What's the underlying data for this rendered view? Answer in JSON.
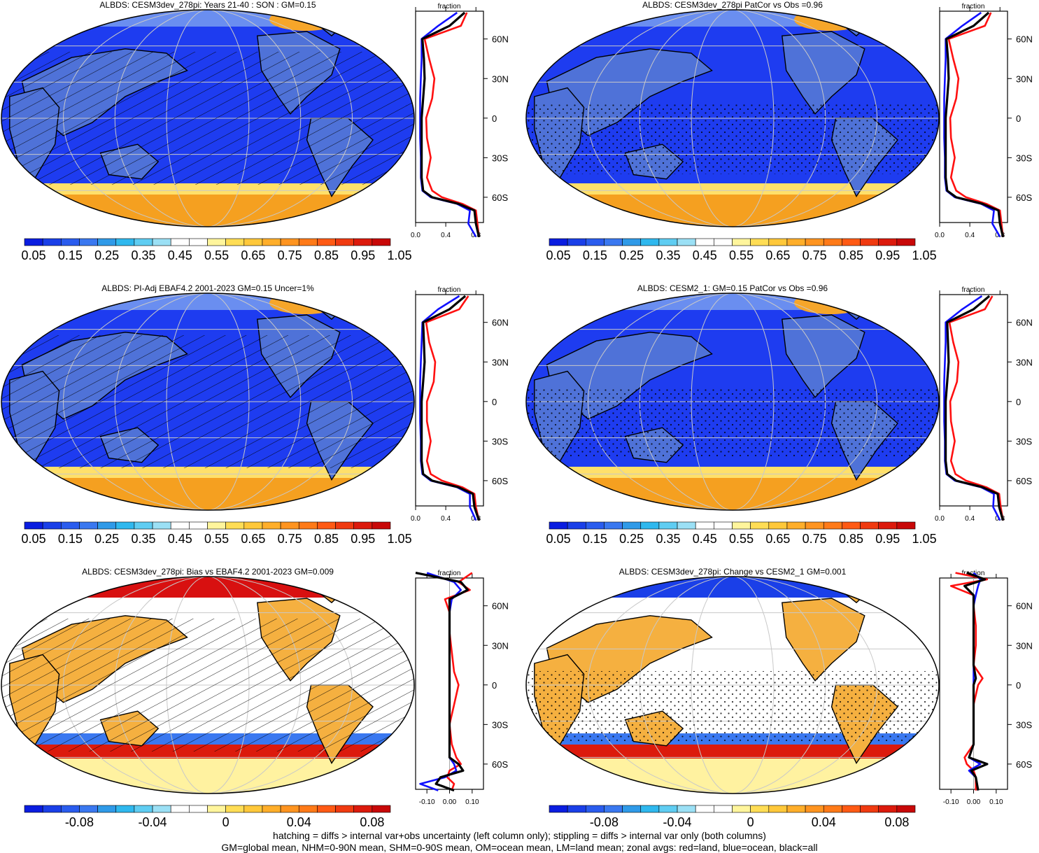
{
  "figure": {
    "panels": [
      {
        "title": "ALBDS: CESM3dev_278pi: Years 21-40 : SON : GM=0.15",
        "colorbar": "abs",
        "zonal_type": "abs",
        "overlay": "hatch",
        "field": "abs"
      },
      {
        "title": "ALBDS: CESM3dev_278pi PatCor vs Obs =0.96",
        "colorbar": "abs",
        "zonal_type": "abs",
        "overlay": "stipple",
        "field": "abs"
      },
      {
        "title": "ALBDS: PI-Adj EBAF4.2 2001-2023 GM=0.15 Uncer=1%",
        "colorbar": "abs",
        "zonal_type": "abs",
        "overlay": "hatch",
        "field": "abs"
      },
      {
        "title": "ALBDS: CESM2_1: GM=0.15 PatCor vs Obs =0.96",
        "colorbar": "abs",
        "zonal_type": "abs",
        "overlay": "stipple",
        "field": "abs"
      },
      {
        "title": "ALBDS: CESM3dev_278pi: Bias vs EBAF4.2 2001-2023  GM=0.009",
        "colorbar": "diff",
        "zonal_type": "diff",
        "overlay": "hatch",
        "field": "diff"
      },
      {
        "title": "ALBDS: CESM3dev_278pi: Change vs CESM2_1 GM=0.001",
        "colorbar": "diff",
        "zonal_type": "diff",
        "overlay": "stipple",
        "field": "diff"
      }
    ],
    "zonal_xlabel": "fraction",
    "lat_ticks": [
      "60N",
      "30N",
      "0",
      "30S",
      "60S"
    ],
    "abs_xticks": [
      "0.0",
      "0.4",
      "0.8"
    ],
    "diff_xticks": [
      "-0.10",
      "0.00",
      "0.10"
    ],
    "colorbar_abs_labels": [
      "0.05",
      "0.15",
      "0.25",
      "0.35",
      "0.45",
      "0.55",
      "0.65",
      "0.75",
      "0.85",
      "0.95",
      "1.05"
    ],
    "colorbar_diff_labels": [
      "-0.08",
      "-0.04",
      "0",
      "0.04",
      "0.08"
    ],
    "palette": [
      "#0a1de0",
      "#1a3fe8",
      "#2a5cee",
      "#3a78f0",
      "#2f9ae8",
      "#2fb8ee",
      "#5fcdf2",
      "#9be0f5",
      "#ffffff",
      "#ffffff",
      "#fff59c",
      "#ffdd55",
      "#ffc83a",
      "#ffae2a",
      "#ff9420",
      "#ff7a18",
      "#ff5a14",
      "#f03a10",
      "#dc1a0c",
      "#c80808"
    ],
    "ocean_color": "#1e3cf0",
    "land_color": "#4f72d8",
    "line_colors": {
      "land": "#ff1010",
      "ocean": "#1010ff",
      "all": "#000000"
    },
    "footer": [
      "hatching = diffs > internal var+obs uncertainty (left column only); stippling = diffs > internal var only (both columns)",
      "GM=global mean, NHM=0-90N mean, SHM=0-90S mean, OM=ocean mean, LM=land mean; zonal avgs: red=land, blue=ocean, black=all"
    ]
  },
  "chart_data": [
    {
      "type": "heatmap",
      "title": "ALBDS: CESM3dev_278pi: Years 21-40 : SON : GM=0.15",
      "colorbar_ticks": [
        0.05,
        0.15,
        0.25,
        0.35,
        0.45,
        0.55,
        0.65,
        0.75,
        0.85,
        0.95,
        1.05
      ],
      "zonal_mean": {
        "xlabel": "fraction",
        "xlim": [
          0,
          0.9
        ],
        "ylim": [
          -90,
          90
        ],
        "lat": [
          80,
          70,
          60,
          45,
          30,
          15,
          0,
          -15,
          -30,
          -45,
          -55,
          -60,
          -65,
          -70,
          -80,
          -90
        ],
        "series": [
          {
            "name": "land",
            "values": [
              0.68,
              0.6,
              0.12,
              0.18,
              0.25,
              0.22,
              0.14,
              0.15,
              0.2,
              0.15,
              0.22,
              0.35,
              0.62,
              0.8,
              0.82,
              0.84
            ]
          },
          {
            "name": "ocean",
            "values": [
              0.55,
              0.3,
              0.08,
              0.08,
              0.07,
              0.06,
              0.06,
              0.06,
              0.07,
              0.07,
              0.09,
              0.2,
              0.55,
              0.72,
              0.7,
              0.8
            ]
          },
          {
            "name": "all",
            "values": [
              0.65,
              0.45,
              0.09,
              0.11,
              0.12,
              0.1,
              0.08,
              0.08,
              0.08,
              0.08,
              0.1,
              0.22,
              0.57,
              0.78,
              0.8,
              0.84
            ]
          }
        ]
      }
    },
    {
      "type": "heatmap",
      "title": "ALBDS: CESM3dev_278pi PatCor vs Obs =0.96",
      "colorbar_ticks": [
        0.05,
        0.15,
        0.25,
        0.35,
        0.45,
        0.55,
        0.65,
        0.75,
        0.85,
        0.95,
        1.05
      ],
      "zonal_mean": {
        "xlabel": "fraction",
        "xlim": [
          0,
          0.9
        ],
        "ylim": [
          -90,
          90
        ],
        "lat": [
          80,
          70,
          60,
          45,
          30,
          15,
          0,
          -15,
          -30,
          -45,
          -55,
          -60,
          -65,
          -70,
          -80,
          -90
        ],
        "series": [
          {
            "name": "land",
            "values": [
              0.68,
              0.6,
              0.12,
              0.18,
              0.25,
              0.22,
              0.14,
              0.15,
              0.2,
              0.15,
              0.22,
              0.35,
              0.62,
              0.8,
              0.82,
              0.84
            ]
          },
          {
            "name": "ocean",
            "values": [
              0.55,
              0.3,
              0.08,
              0.08,
              0.07,
              0.06,
              0.06,
              0.06,
              0.07,
              0.07,
              0.09,
              0.2,
              0.55,
              0.72,
              0.7,
              0.8
            ]
          },
          {
            "name": "all",
            "values": [
              0.65,
              0.45,
              0.09,
              0.11,
              0.12,
              0.1,
              0.08,
              0.08,
              0.08,
              0.08,
              0.1,
              0.22,
              0.57,
              0.78,
              0.8,
              0.84
            ]
          }
        ]
      }
    },
    {
      "type": "heatmap",
      "title": "ALBDS: PI-Adj EBAF4.2 2001-2023 GM=0.15 Uncer=1%",
      "colorbar_ticks": [
        0.05,
        0.15,
        0.25,
        0.35,
        0.45,
        0.55,
        0.65,
        0.75,
        0.85,
        0.95,
        1.05
      ],
      "zonal_mean": {
        "xlabel": "fraction",
        "xlim": [
          0,
          0.9
        ],
        "ylim": [
          -90,
          90
        ],
        "lat": [
          80,
          70,
          60,
          45,
          30,
          15,
          0,
          -15,
          -30,
          -45,
          -55,
          -60,
          -65,
          -70,
          -80,
          -90
        ],
        "series": [
          {
            "name": "land",
            "values": [
              0.7,
              0.58,
              0.14,
              0.18,
              0.26,
              0.24,
              0.15,
              0.15,
              0.2,
              0.15,
              0.2,
              0.35,
              0.62,
              0.78,
              0.8,
              0.84
            ]
          },
          {
            "name": "ocean",
            "values": [
              0.58,
              0.3,
              0.09,
              0.08,
              0.07,
              0.06,
              0.06,
              0.06,
              0.07,
              0.07,
              0.09,
              0.2,
              0.55,
              0.72,
              0.72,
              0.8
            ]
          },
          {
            "name": "all",
            "values": [
              0.66,
              0.45,
              0.1,
              0.11,
              0.12,
              0.1,
              0.08,
              0.08,
              0.08,
              0.08,
              0.1,
              0.22,
              0.57,
              0.76,
              0.78,
              0.84
            ]
          }
        ]
      }
    },
    {
      "type": "heatmap",
      "title": "ALBDS: CESM2_1: GM=0.15 PatCor vs Obs =0.96",
      "colorbar_ticks": [
        0.05,
        0.15,
        0.25,
        0.35,
        0.45,
        0.55,
        0.65,
        0.75,
        0.85,
        0.95,
        1.05
      ],
      "zonal_mean": {
        "xlabel": "fraction",
        "xlim": [
          0,
          0.9
        ],
        "ylim": [
          -90,
          90
        ],
        "lat": [
          80,
          70,
          60,
          45,
          30,
          15,
          0,
          -15,
          -30,
          -45,
          -55,
          -60,
          -65,
          -70,
          -80,
          -90
        ],
        "series": [
          {
            "name": "land",
            "values": [
              0.7,
              0.6,
              0.13,
              0.18,
              0.25,
              0.23,
              0.14,
              0.15,
              0.2,
              0.15,
              0.21,
              0.35,
              0.62,
              0.79,
              0.81,
              0.84
            ]
          },
          {
            "name": "ocean",
            "values": [
              0.56,
              0.3,
              0.08,
              0.08,
              0.07,
              0.06,
              0.06,
              0.06,
              0.07,
              0.07,
              0.09,
              0.2,
              0.55,
              0.72,
              0.71,
              0.8
            ]
          },
          {
            "name": "all",
            "values": [
              0.66,
              0.45,
              0.1,
              0.11,
              0.12,
              0.1,
              0.08,
              0.08,
              0.08,
              0.08,
              0.1,
              0.22,
              0.57,
              0.77,
              0.79,
              0.84
            ]
          }
        ]
      }
    },
    {
      "type": "heatmap",
      "title": "ALBDS: CESM3dev_278pi: Bias vs EBAF4.2 2001-2023  GM=0.009",
      "colorbar_ticks": [
        -0.08,
        -0.04,
        0,
        0.04,
        0.08
      ],
      "zonal_mean": {
        "xlabel": "fraction",
        "xlim": [
          -0.15,
          0.15
        ],
        "ylim": [
          -90,
          90
        ],
        "lat": [
          85,
          78,
          72,
          65,
          55,
          40,
          25,
          10,
          0,
          -15,
          -30,
          -45,
          -55,
          -60,
          -65,
          -70,
          -75,
          -80
        ],
        "series": [
          {
            "name": "land",
            "values": [
              0.1,
              0.04,
              0.09,
              -0.02,
              0.0,
              0.0,
              0.01,
              0.02,
              0.04,
              0.02,
              0.0,
              0.01,
              0.03,
              0.05,
              0.0,
              -0.01,
              0.02,
              0.01
            ]
          },
          {
            "name": "ocean",
            "values": [
              -0.1,
              0.02,
              0.05,
              0.01,
              0.0,
              0.0,
              0.0,
              0.0,
              0.0,
              0.0,
              0.0,
              0.0,
              0.0,
              0.02,
              0.03,
              -0.02,
              -0.13,
              -0.05
            ]
          },
          {
            "name": "all",
            "values": [
              -0.15,
              0.05,
              0.08,
              0.0,
              0.0,
              0.0,
              0.0,
              0.0,
              0.0,
              0.0,
              0.0,
              0.0,
              0.0,
              0.04,
              0.06,
              -0.04,
              -0.06,
              0.02
            ]
          }
        ]
      }
    },
    {
      "type": "heatmap",
      "title": "ALBDS: CESM3dev_278pi: Change vs CESM2_1 GM=0.001",
      "colorbar_ticks": [
        -0.08,
        -0.04,
        0,
        0.04,
        0.08
      ],
      "zonal_mean": {
        "xlabel": "fraction",
        "xlim": [
          -0.15,
          0.15
        ],
        "ylim": [
          -90,
          90
        ],
        "lat": [
          85,
          80,
          75,
          68,
          60,
          45,
          30,
          15,
          5,
          0,
          -15,
          -30,
          -45,
          -55,
          -60,
          -65,
          -70,
          -80
        ],
        "series": [
          {
            "name": "land",
            "values": [
              -0.08,
              0.06,
              -0.1,
              0.0,
              0.0,
              0.01,
              0.01,
              0.0,
              0.04,
              0.02,
              0.0,
              0.0,
              0.0,
              -0.04,
              -0.03,
              0.0,
              0.01,
              0.01
            ]
          },
          {
            "name": "ocean",
            "values": [
              0.0,
              0.03,
              0.02,
              0.01,
              0.0,
              0.0,
              0.0,
              0.0,
              0.0,
              0.0,
              0.0,
              0.0,
              0.0,
              -0.02,
              0.03,
              -0.02,
              0.01,
              0.02
            ]
          },
          {
            "name": "all",
            "values": [
              -0.03,
              0.05,
              -0.04,
              0.0,
              0.0,
              0.0,
              0.0,
              0.0,
              0.01,
              0.0,
              0.0,
              0.0,
              0.0,
              -0.02,
              0.06,
              -0.01,
              0.01,
              0.02
            ]
          }
        ]
      }
    }
  ]
}
